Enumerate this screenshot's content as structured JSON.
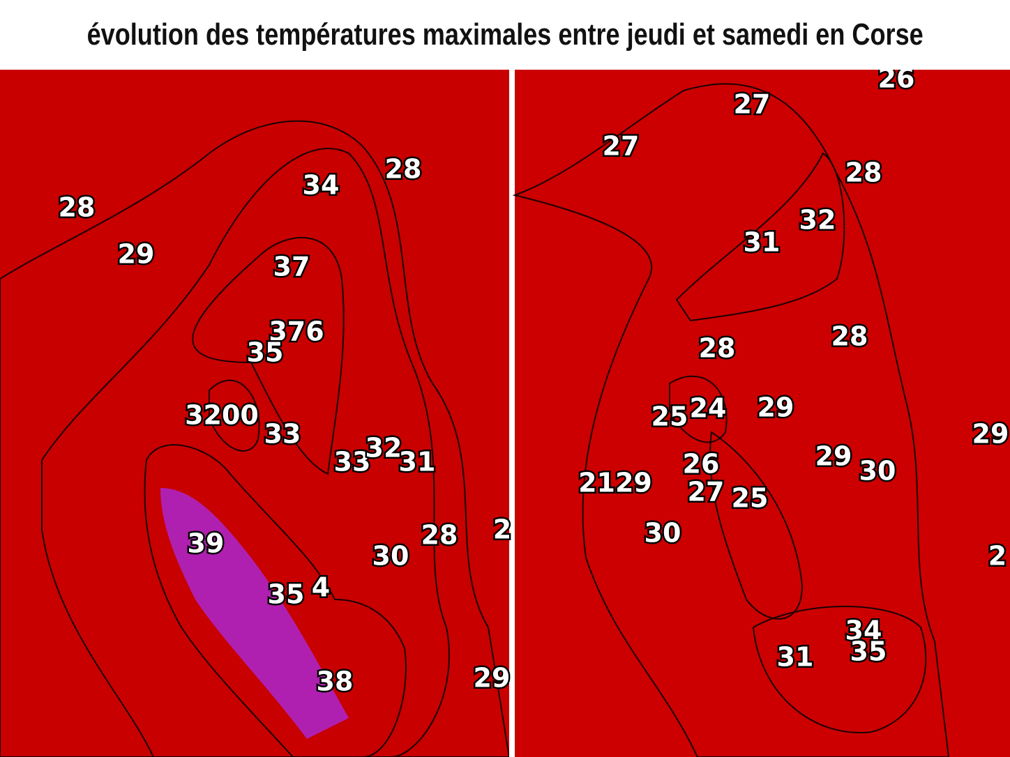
{
  "header": {
    "title": "évolution des températures maximales entre jeudi et samedi en Corse"
  },
  "panels": [
    {
      "labels": [
        28,
        29,
        34,
        28,
        37,
        376,
        35,
        3200,
        33,
        33,
        32,
        31,
        39,
        35,
        4,
        38,
        29,
        28,
        30,
        2
      ]
    },
    {
      "labels": [
        26,
        27,
        27,
        28,
        32,
        31,
        28,
        28,
        25,
        24,
        29,
        29,
        30,
        26,
        27,
        25,
        2129,
        30,
        29,
        34,
        35,
        31,
        2
      ]
    }
  ]
}
